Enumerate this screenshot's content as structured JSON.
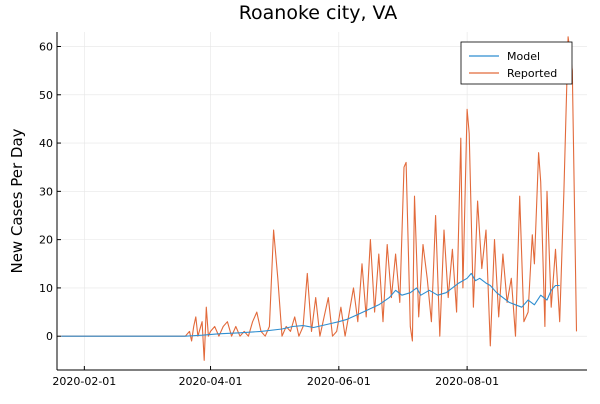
{
  "chart_data": {
    "type": "line",
    "title": "Roanoke city, VA",
    "xlabel": "",
    "ylabel": "New Cases Per Day",
    "x_ticks": [
      "2020-02-01",
      "2020-04-01",
      "2020-06-01",
      "2020-08-01"
    ],
    "y_ticks": [
      0,
      10,
      20,
      30,
      40,
      50,
      60
    ],
    "xlim": [
      "2020-01-19",
      "2020-09-27"
    ],
    "ylim": [
      -7,
      63
    ],
    "grid": true,
    "legend_position": "top-right",
    "colors": {
      "Model": "#2f8ed0",
      "Reported": "#e26a3b"
    },
    "series": [
      {
        "name": "Model",
        "points": [
          [
            "2020-01-21",
            0
          ],
          [
            "2020-03-20",
            0
          ],
          [
            "2020-03-28",
            0.2
          ],
          [
            "2020-04-05",
            0.5
          ],
          [
            "2020-04-15",
            0.7
          ],
          [
            "2020-04-25",
            1
          ],
          [
            "2020-05-05",
            1.5
          ],
          [
            "2020-05-10",
            2
          ],
          [
            "2020-05-15",
            2.2
          ],
          [
            "2020-05-20",
            1.8
          ],
          [
            "2020-05-27",
            2.5
          ],
          [
            "2020-06-01",
            3
          ],
          [
            "2020-06-05",
            3.5
          ],
          [
            "2020-06-10",
            4.5
          ],
          [
            "2020-06-15",
            5.5
          ],
          [
            "2020-06-20",
            6.5
          ],
          [
            "2020-06-25",
            8
          ],
          [
            "2020-06-28",
            9.5
          ],
          [
            "2020-07-01",
            8.5
          ],
          [
            "2020-07-05",
            9
          ],
          [
            "2020-07-08",
            10
          ],
          [
            "2020-07-10",
            8.5
          ],
          [
            "2020-07-14",
            9.5
          ],
          [
            "2020-07-18",
            8.5
          ],
          [
            "2020-07-22",
            9
          ],
          [
            "2020-07-25",
            10
          ],
          [
            "2020-07-28",
            11
          ],
          [
            "2020-08-01",
            12
          ],
          [
            "2020-08-03",
            13
          ],
          [
            "2020-08-05",
            11.5
          ],
          [
            "2020-08-07",
            12
          ],
          [
            "2020-08-10",
            11
          ],
          [
            "2020-08-12",
            10.5
          ],
          [
            "2020-08-15",
            9
          ],
          [
            "2020-08-18",
            8
          ],
          [
            "2020-08-21",
            7
          ],
          [
            "2020-08-24",
            6.5
          ],
          [
            "2020-08-27",
            6
          ],
          [
            "2020-08-30",
            7.5
          ],
          [
            "2020-09-02",
            6.5
          ],
          [
            "2020-09-05",
            8.5
          ],
          [
            "2020-09-08",
            7.5
          ],
          [
            "2020-09-10",
            9.5
          ],
          [
            "2020-09-12",
            10.5
          ],
          [
            "2020-09-14",
            10.5
          ]
        ]
      },
      {
        "name": "Reported",
        "points": [
          [
            "2020-01-21",
            0
          ],
          [
            "2020-03-20",
            0
          ],
          [
            "2020-03-22",
            1
          ],
          [
            "2020-03-23",
            -1
          ],
          [
            "2020-03-24",
            2
          ],
          [
            "2020-03-25",
            4
          ],
          [
            "2020-03-26",
            0
          ],
          [
            "2020-03-28",
            3
          ],
          [
            "2020-03-29",
            -5
          ],
          [
            "2020-03-30",
            6
          ],
          [
            "2020-03-31",
            0
          ],
          [
            "2020-04-01",
            1
          ],
          [
            "2020-04-03",
            2
          ],
          [
            "2020-04-05",
            0
          ],
          [
            "2020-04-07",
            2
          ],
          [
            "2020-04-09",
            3
          ],
          [
            "2020-04-11",
            0
          ],
          [
            "2020-04-13",
            2
          ],
          [
            "2020-04-15",
            0
          ],
          [
            "2020-04-17",
            1
          ],
          [
            "2020-04-19",
            0
          ],
          [
            "2020-04-21",
            3
          ],
          [
            "2020-04-23",
            5
          ],
          [
            "2020-04-25",
            1
          ],
          [
            "2020-04-27",
            0
          ],
          [
            "2020-04-29",
            2
          ],
          [
            "2020-05-01",
            22
          ],
          [
            "2020-05-03",
            12
          ],
          [
            "2020-05-05",
            0
          ],
          [
            "2020-05-07",
            2
          ],
          [
            "2020-05-09",
            1
          ],
          [
            "2020-05-11",
            4
          ],
          [
            "2020-05-13",
            0
          ],
          [
            "2020-05-15",
            2
          ],
          [
            "2020-05-17",
            13
          ],
          [
            "2020-05-19",
            1
          ],
          [
            "2020-05-21",
            8
          ],
          [
            "2020-05-23",
            0
          ],
          [
            "2020-05-25",
            4
          ],
          [
            "2020-05-27",
            8
          ],
          [
            "2020-05-29",
            0
          ],
          [
            "2020-05-31",
            1
          ],
          [
            "2020-06-02",
            6
          ],
          [
            "2020-06-04",
            0
          ],
          [
            "2020-06-06",
            5
          ],
          [
            "2020-06-08",
            10
          ],
          [
            "2020-06-10",
            3
          ],
          [
            "2020-06-12",
            15
          ],
          [
            "2020-06-14",
            4
          ],
          [
            "2020-06-16",
            20
          ],
          [
            "2020-06-18",
            5
          ],
          [
            "2020-06-20",
            17
          ],
          [
            "2020-06-22",
            3
          ],
          [
            "2020-06-24",
            19
          ],
          [
            "2020-06-26",
            8
          ],
          [
            "2020-06-28",
            17
          ],
          [
            "2020-06-30",
            7
          ],
          [
            "2020-07-02",
            35
          ],
          [
            "2020-07-03",
            36
          ],
          [
            "2020-07-05",
            2
          ],
          [
            "2020-07-06",
            -1
          ],
          [
            "2020-07-07",
            29
          ],
          [
            "2020-07-09",
            4
          ],
          [
            "2020-07-11",
            19
          ],
          [
            "2020-07-13",
            12
          ],
          [
            "2020-07-15",
            3
          ],
          [
            "2020-07-17",
            25
          ],
          [
            "2020-07-19",
            0
          ],
          [
            "2020-07-21",
            22
          ],
          [
            "2020-07-23",
            8
          ],
          [
            "2020-07-25",
            18
          ],
          [
            "2020-07-27",
            5
          ],
          [
            "2020-07-29",
            41
          ],
          [
            "2020-07-30",
            10
          ],
          [
            "2020-08-01",
            47
          ],
          [
            "2020-08-02",
            42
          ],
          [
            "2020-08-04",
            6
          ],
          [
            "2020-08-06",
            28
          ],
          [
            "2020-08-08",
            14
          ],
          [
            "2020-08-10",
            22
          ],
          [
            "2020-08-12",
            -2
          ],
          [
            "2020-08-14",
            20
          ],
          [
            "2020-08-16",
            4
          ],
          [
            "2020-08-18",
            17
          ],
          [
            "2020-08-20",
            7
          ],
          [
            "2020-08-22",
            12
          ],
          [
            "2020-08-24",
            0
          ],
          [
            "2020-08-26",
            29
          ],
          [
            "2020-08-28",
            3
          ],
          [
            "2020-08-30",
            5
          ],
          [
            "2020-09-01",
            21
          ],
          [
            "2020-09-02",
            15
          ],
          [
            "2020-09-04",
            38
          ],
          [
            "2020-09-05",
            32
          ],
          [
            "2020-09-07",
            2
          ],
          [
            "2020-09-08",
            30
          ],
          [
            "2020-09-10",
            6
          ],
          [
            "2020-09-12",
            18
          ],
          [
            "2020-09-14",
            3
          ],
          [
            "2020-09-16",
            30
          ],
          [
            "2020-09-18",
            62
          ],
          [
            "2020-09-20",
            55
          ],
          [
            "2020-09-22",
            1
          ]
        ]
      }
    ]
  }
}
